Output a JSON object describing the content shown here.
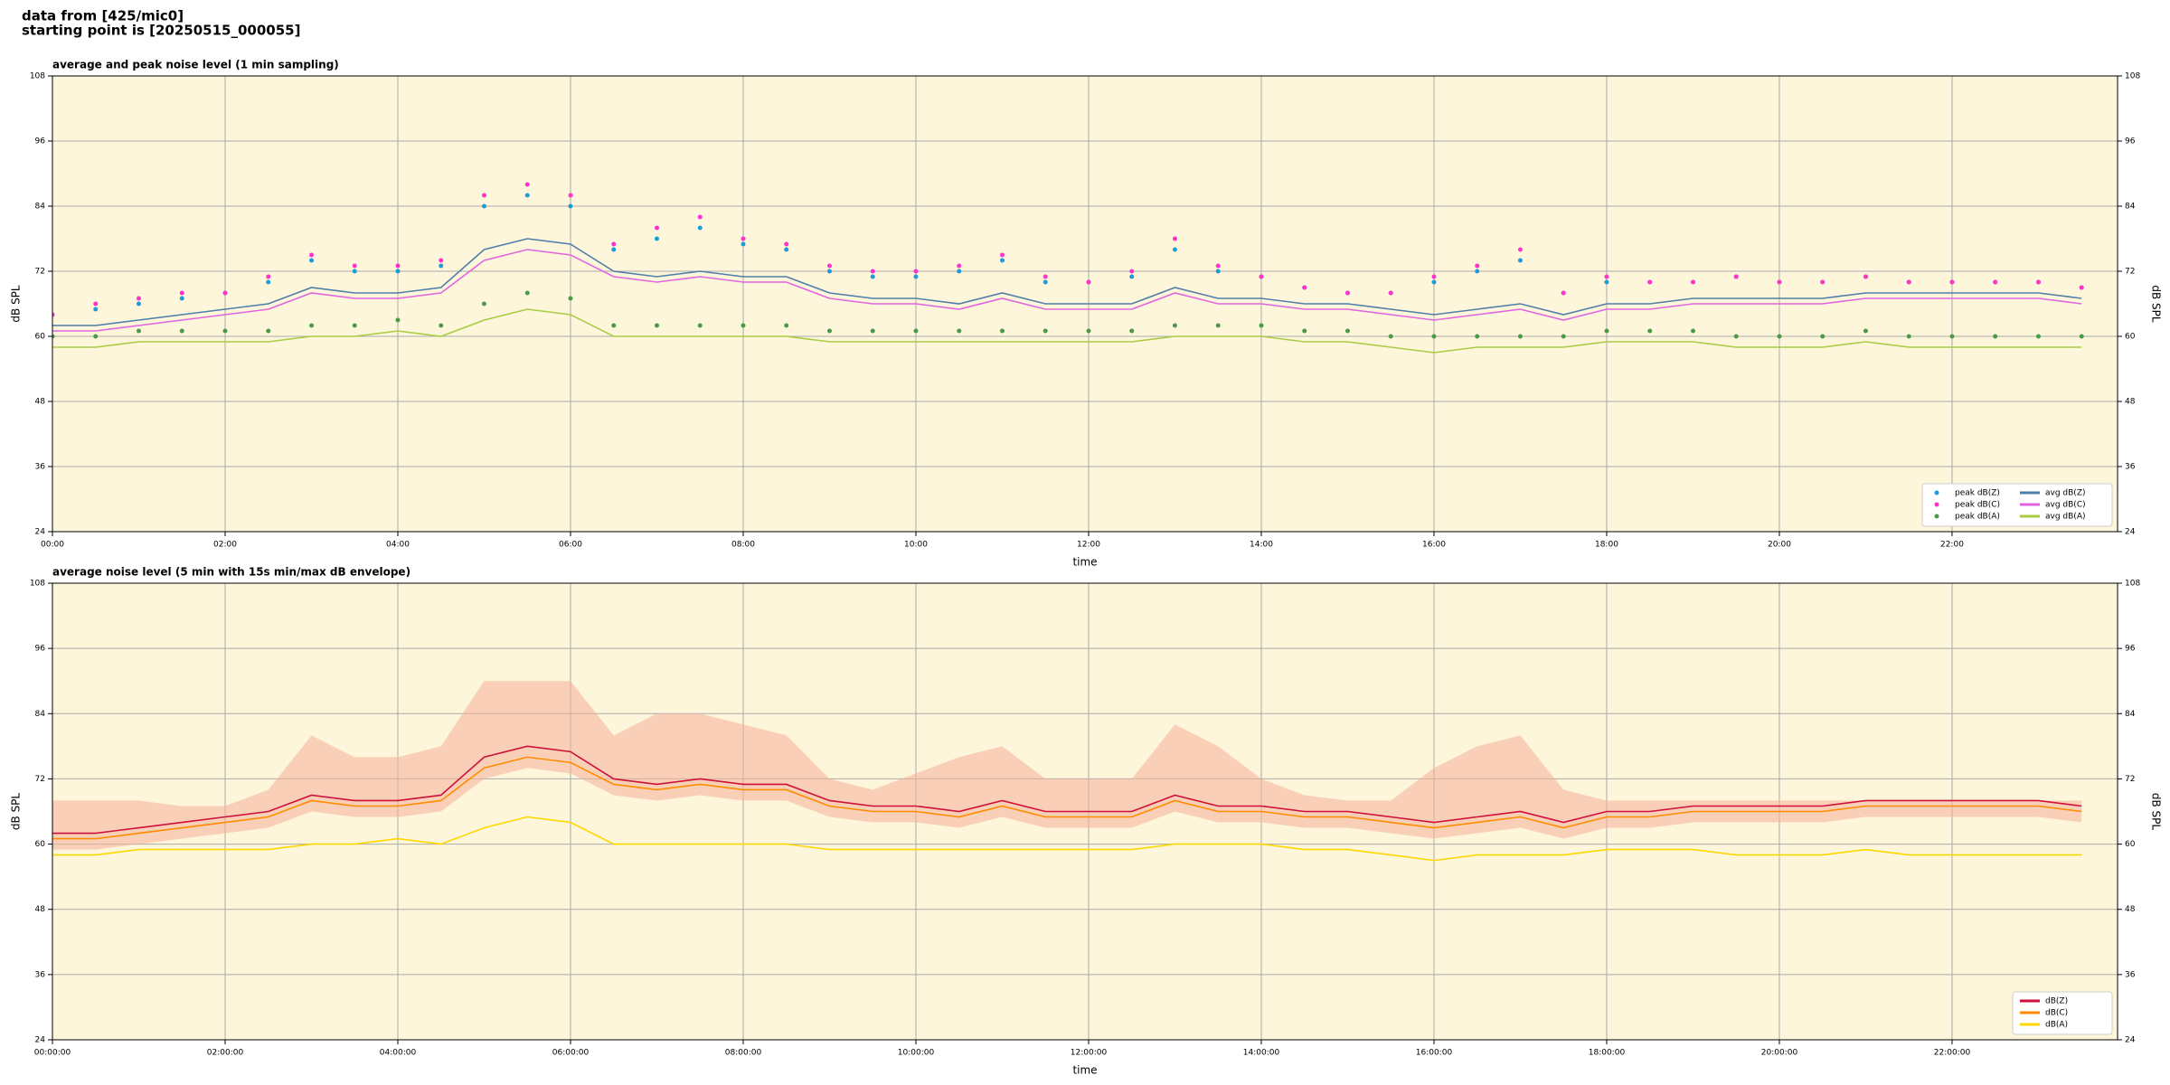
{
  "header": [
    "data from [425/mic0]",
    "starting point is [20250515_000055]"
  ],
  "chart_data": [
    {
      "type": "line",
      "title": "average and peak noise level (1 min sampling)",
      "xlabel": "time",
      "ylabel": "dB SPL",
      "x": [
        "00:00",
        "00:30",
        "01:00",
        "01:30",
        "02:00",
        "02:30",
        "03:00",
        "03:30",
        "04:00",
        "04:30",
        "05:00",
        "05:30",
        "06:00",
        "06:30",
        "07:00",
        "07:30",
        "08:00",
        "08:30",
        "09:00",
        "09:30",
        "10:00",
        "10:30",
        "11:00",
        "11:30",
        "12:00",
        "12:30",
        "13:00",
        "13:30",
        "14:00",
        "14:30",
        "15:00",
        "15:30",
        "16:00",
        "16:30",
        "17:00",
        "17:30",
        "18:00",
        "18:30",
        "19:00",
        "19:30",
        "20:00",
        "20:30",
        "21:00",
        "21:30",
        "22:00",
        "22:30",
        "23:00",
        "23:30"
      ],
      "xlim": [
        "00:00",
        "23:55"
      ],
      "xticks": [
        "00:00",
        "02:00",
        "04:00",
        "06:00",
        "08:00",
        "10:00",
        "12:00",
        "14:00",
        "16:00",
        "18:00",
        "20:00",
        "22:00"
      ],
      "ylim": [
        24,
        108
      ],
      "yticks": [
        24,
        36,
        48,
        60,
        72,
        84,
        96,
        108
      ],
      "grid": true,
      "legend": "lower right",
      "series": [
        {
          "name": "peak dB(Z)",
          "color": "#1f9bd8",
          "marker": "dot",
          "values": [
            64,
            65,
            66,
            67,
            68,
            70,
            74,
            72,
            72,
            73,
            84,
            86,
            84,
            76,
            78,
            80,
            77,
            76,
            72,
            71,
            71,
            72,
            74,
            70,
            70,
            71,
            76,
            72,
            71,
            69,
            68,
            68,
            70,
            72,
            74,
            68,
            70,
            70,
            70,
            71,
            70,
            70,
            71,
            70,
            70,
            70,
            70,
            69
          ]
        },
        {
          "name": "peak dB(C)",
          "color": "#ff33cc",
          "marker": "dot",
          "values": [
            64,
            66,
            67,
            68,
            68,
            71,
            75,
            73,
            73,
            74,
            86,
            88,
            86,
            77,
            80,
            82,
            78,
            77,
            73,
            72,
            72,
            73,
            75,
            71,
            70,
            72,
            78,
            73,
            71,
            69,
            68,
            68,
            71,
            73,
            76,
            68,
            71,
            70,
            70,
            71,
            70,
            70,
            71,
            70,
            70,
            70,
            70,
            69
          ]
        },
        {
          "name": "peak dB(A)",
          "color": "#4a9a4a",
          "marker": "dot",
          "values": [
            60,
            60,
            61,
            61,
            61,
            61,
            62,
            62,
            63,
            62,
            66,
            68,
            67,
            62,
            62,
            62,
            62,
            62,
            61,
            61,
            61,
            61,
            61,
            61,
            61,
            61,
            62,
            62,
            62,
            61,
            61,
            60,
            60,
            60,
            60,
            60,
            61,
            61,
            61,
            60,
            60,
            60,
            61,
            60,
            60,
            60,
            60,
            60
          ]
        },
        {
          "name": "avg dB(Z)",
          "color": "#4f7fa8",
          "values": [
            62,
            62,
            63,
            64,
            65,
            66,
            69,
            68,
            68,
            69,
            76,
            78,
            77,
            72,
            71,
            72,
            71,
            71,
            68,
            67,
            67,
            66,
            68,
            66,
            66,
            66,
            69,
            67,
            67,
            66,
            66,
            65,
            64,
            65,
            66,
            64,
            66,
            66,
            67,
            67,
            67,
            67,
            68,
            68,
            68,
            68,
            68,
            67
          ]
        },
        {
          "name": "avg dB(C)",
          "color": "#e066e0",
          "values": [
            61,
            61,
            62,
            63,
            64,
            65,
            68,
            67,
            67,
            68,
            74,
            76,
            75,
            71,
            70,
            71,
            70,
            70,
            67,
            66,
            66,
            65,
            67,
            65,
            65,
            65,
            68,
            66,
            66,
            65,
            65,
            64,
            63,
            64,
            65,
            63,
            65,
            65,
            66,
            66,
            66,
            66,
            67,
            67,
            67,
            67,
            67,
            66
          ]
        },
        {
          "name": "avg dB(A)",
          "color": "#a8cc44",
          "values": [
            58,
            58,
            59,
            59,
            59,
            59,
            60,
            60,
            61,
            60,
            63,
            65,
            64,
            60,
            60,
            60,
            60,
            60,
            59,
            59,
            59,
            59,
            59,
            59,
            59,
            59,
            60,
            60,
            60,
            59,
            59,
            58,
            57,
            58,
            58,
            58,
            59,
            59,
            59,
            58,
            58,
            58,
            59,
            58,
            58,
            58,
            58,
            58
          ]
        }
      ]
    },
    {
      "type": "line",
      "title": "average noise level (5 min with 15s min/max dB envelope)",
      "xlabel": "time",
      "ylabel": "dB SPL",
      "x": [
        "00:00:00",
        "00:30:00",
        "01:00:00",
        "01:30:00",
        "02:00:00",
        "02:30:00",
        "03:00:00",
        "03:30:00",
        "04:00:00",
        "04:30:00",
        "05:00:00",
        "05:30:00",
        "06:00:00",
        "06:30:00",
        "07:00:00",
        "07:30:00",
        "08:00:00",
        "08:30:00",
        "09:00:00",
        "09:30:00",
        "10:00:00",
        "10:30:00",
        "11:00:00",
        "11:30:00",
        "12:00:00",
        "12:30:00",
        "13:00:00",
        "13:30:00",
        "14:00:00",
        "14:30:00",
        "15:00:00",
        "15:30:00",
        "16:00:00",
        "16:30:00",
        "17:00:00",
        "17:30:00",
        "18:00:00",
        "18:30:00",
        "19:00:00",
        "19:30:00",
        "20:00:00",
        "20:30:00",
        "21:00:00",
        "21:30:00",
        "22:00:00",
        "22:30:00",
        "23:00:00",
        "23:30:00"
      ],
      "xlim": [
        "00:00:00",
        "23:55:00"
      ],
      "xticks": [
        "00:00:00",
        "02:00:00",
        "04:00:00",
        "06:00:00",
        "08:00:00",
        "10:00:00",
        "12:00:00",
        "14:00:00",
        "16:00:00",
        "18:00:00",
        "20:00:00",
        "22:00:00"
      ],
      "ylim": [
        24,
        108
      ],
      "yticks": [
        24,
        36,
        48,
        60,
        72,
        84,
        96,
        108
      ],
      "grid": true,
      "legend": "lower right",
      "envelope": {
        "color": "#f4b09a",
        "max": [
          68,
          68,
          68,
          67,
          67,
          70,
          80,
          76,
          76,
          78,
          90,
          90,
          90,
          80,
          84,
          84,
          82,
          80,
          72,
          70,
          73,
          76,
          78,
          72,
          72,
          72,
          82,
          78,
          72,
          69,
          68,
          68,
          74,
          78,
          80,
          70,
          68,
          68,
          68,
          68,
          68,
          68,
          68,
          68,
          68,
          68,
          68,
          68
        ],
        "min": [
          59,
          59,
          60,
          61,
          62,
          63,
          66,
          65,
          65,
          66,
          72,
          74,
          73,
          69,
          68,
          69,
          68,
          68,
          65,
          64,
          64,
          63,
          65,
          63,
          63,
          63,
          66,
          64,
          64,
          63,
          63,
          62,
          61,
          62,
          63,
          61,
          63,
          63,
          64,
          64,
          64,
          64,
          65,
          65,
          65,
          65,
          65,
          64
        ]
      },
      "series": [
        {
          "name": "dB(Z)",
          "color": "#d0103a",
          "values": [
            62,
            62,
            63,
            64,
            65,
            66,
            69,
            68,
            68,
            69,
            76,
            78,
            77,
            72,
            71,
            72,
            71,
            71,
            68,
            67,
            67,
            66,
            68,
            66,
            66,
            66,
            69,
            67,
            67,
            66,
            66,
            65,
            64,
            65,
            66,
            64,
            66,
            66,
            67,
            67,
            67,
            67,
            68,
            68,
            68,
            68,
            68,
            67
          ]
        },
        {
          "name": "dB(C)",
          "color": "#ff8c00",
          "values": [
            61,
            61,
            62,
            63,
            64,
            65,
            68,
            67,
            67,
            68,
            74,
            76,
            75,
            71,
            70,
            71,
            70,
            70,
            67,
            66,
            66,
            65,
            67,
            65,
            65,
            65,
            68,
            66,
            66,
            65,
            65,
            64,
            63,
            64,
            65,
            63,
            65,
            65,
            66,
            66,
            66,
            66,
            67,
            67,
            67,
            67,
            67,
            66
          ]
        },
        {
          "name": "dB(A)",
          "color": "#ffd700",
          "values": [
            58,
            58,
            59,
            59,
            59,
            59,
            60,
            60,
            61,
            60,
            63,
            65,
            64,
            60,
            60,
            60,
            60,
            60,
            59,
            59,
            59,
            59,
            59,
            59,
            59,
            59,
            60,
            60,
            60,
            59,
            59,
            58,
            57,
            58,
            58,
            58,
            59,
            59,
            59,
            58,
            58,
            58,
            59,
            58,
            58,
            58,
            58,
            58
          ]
        }
      ]
    }
  ]
}
